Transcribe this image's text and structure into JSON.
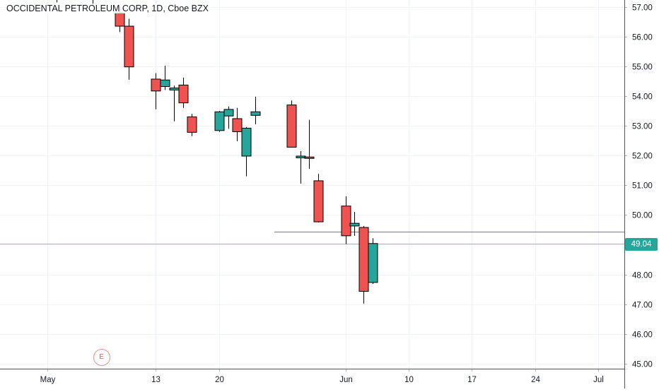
{
  "header": {
    "title": "OCCIDENTAL PETROLEUM CORP, 1D, Cboe BZX"
  },
  "colors": {
    "up": "#26a69a",
    "down": "#ef5350",
    "grid": "#f0f3fa",
    "axis_text": "#131722",
    "price_line": "#80cbc4",
    "level_line": "#787b86",
    "earnings": "#ef5350"
  },
  "chart_data": {
    "type": "candlestick",
    "symbol": "OCCIDENTAL PETROLEUM CORP",
    "interval": "1D",
    "exchange": "Cboe BZX",
    "x_tick_labels": [
      "May",
      "13",
      "20",
      "Jun",
      "10",
      "17",
      "24",
      "Jul"
    ],
    "x_tick_dates": [
      "2019-05-01",
      "2019-05-13",
      "2019-05-20",
      "2019-06-03",
      "2019-06-10",
      "2019-06-17",
      "2019-06-24",
      "2019-07-01"
    ],
    "y_tick_labels": [
      "45.00",
      "46.00",
      "47.00",
      "48.00",
      "49.00",
      "50.00",
      "51.00",
      "52.00",
      "53.00",
      "54.00",
      "55.00",
      "56.00",
      "57.00"
    ],
    "ylim": [
      44.83,
      57.23
    ],
    "grid": true,
    "current_price": 49.04,
    "current_price_label": "49.04",
    "horizontal_level": 49.44,
    "earnings_marker": {
      "date": "2019-05-07",
      "label": "E"
    },
    "candles": [
      {
        "date": "2019-05-02",
        "open": 57.4,
        "high": 57.6,
        "low": 57.15,
        "close": 57.3
      },
      {
        "date": "2019-05-06",
        "open": 57.4,
        "high": 57.6,
        "low": 57.05,
        "close": 57.3
      },
      {
        "date": "2019-05-09",
        "open": 56.8,
        "high": 57.0,
        "low": 56.15,
        "close": 56.35
      },
      {
        "date": "2019-05-10",
        "open": 56.35,
        "high": 56.6,
        "low": 54.55,
        "close": 54.98
      },
      {
        "date": "2019-05-13",
        "open": 54.57,
        "high": 54.77,
        "low": 53.55,
        "close": 54.17
      },
      {
        "date": "2019-05-14",
        "open": 54.32,
        "high": 55.02,
        "low": 54.2,
        "close": 54.54
      },
      {
        "date": "2019-05-15",
        "open": 54.2,
        "high": 54.35,
        "low": 53.15,
        "close": 54.27
      },
      {
        "date": "2019-05-16",
        "open": 54.37,
        "high": 54.62,
        "low": 53.6,
        "close": 53.77
      },
      {
        "date": "2019-05-17",
        "open": 53.3,
        "high": 53.4,
        "low": 52.65,
        "close": 52.78
      },
      {
        "date": "2019-05-20",
        "open": 52.84,
        "high": 53.5,
        "low": 52.79,
        "close": 53.47
      },
      {
        "date": "2019-05-21",
        "open": 53.33,
        "high": 53.65,
        "low": 52.9,
        "close": 53.55
      },
      {
        "date": "2019-05-22",
        "open": 53.24,
        "high": 53.6,
        "low": 52.48,
        "close": 52.8
      },
      {
        "date": "2019-05-23",
        "open": 51.98,
        "high": 52.96,
        "low": 51.3,
        "close": 52.92
      },
      {
        "date": "2019-05-24",
        "open": 53.35,
        "high": 53.98,
        "low": 53.05,
        "close": 53.47
      },
      {
        "date": "2019-05-28",
        "open": 53.7,
        "high": 53.85,
        "low": 52.28,
        "close": 52.28
      },
      {
        "date": "2019-05-29",
        "open": 51.92,
        "high": 52.15,
        "low": 51.05,
        "close": 51.98
      },
      {
        "date": "2019-05-30",
        "open": 51.95,
        "high": 53.2,
        "low": 51.55,
        "close": 51.93
      },
      {
        "date": "2019-05-31",
        "open": 51.15,
        "high": 51.38,
        "low": 49.75,
        "close": 49.77
      },
      {
        "date": "2019-06-03",
        "open": 50.3,
        "high": 50.63,
        "low": 49.02,
        "close": 49.3
      },
      {
        "date": "2019-06-04",
        "open": 49.63,
        "high": 50.1,
        "low": 49.3,
        "close": 49.72
      },
      {
        "date": "2019-06-05",
        "open": 49.58,
        "high": 49.63,
        "low": 47.02,
        "close": 47.43
      },
      {
        "date": "2019-06-06",
        "open": 47.73,
        "high": 49.22,
        "low": 47.68,
        "close": 49.04
      }
    ]
  }
}
